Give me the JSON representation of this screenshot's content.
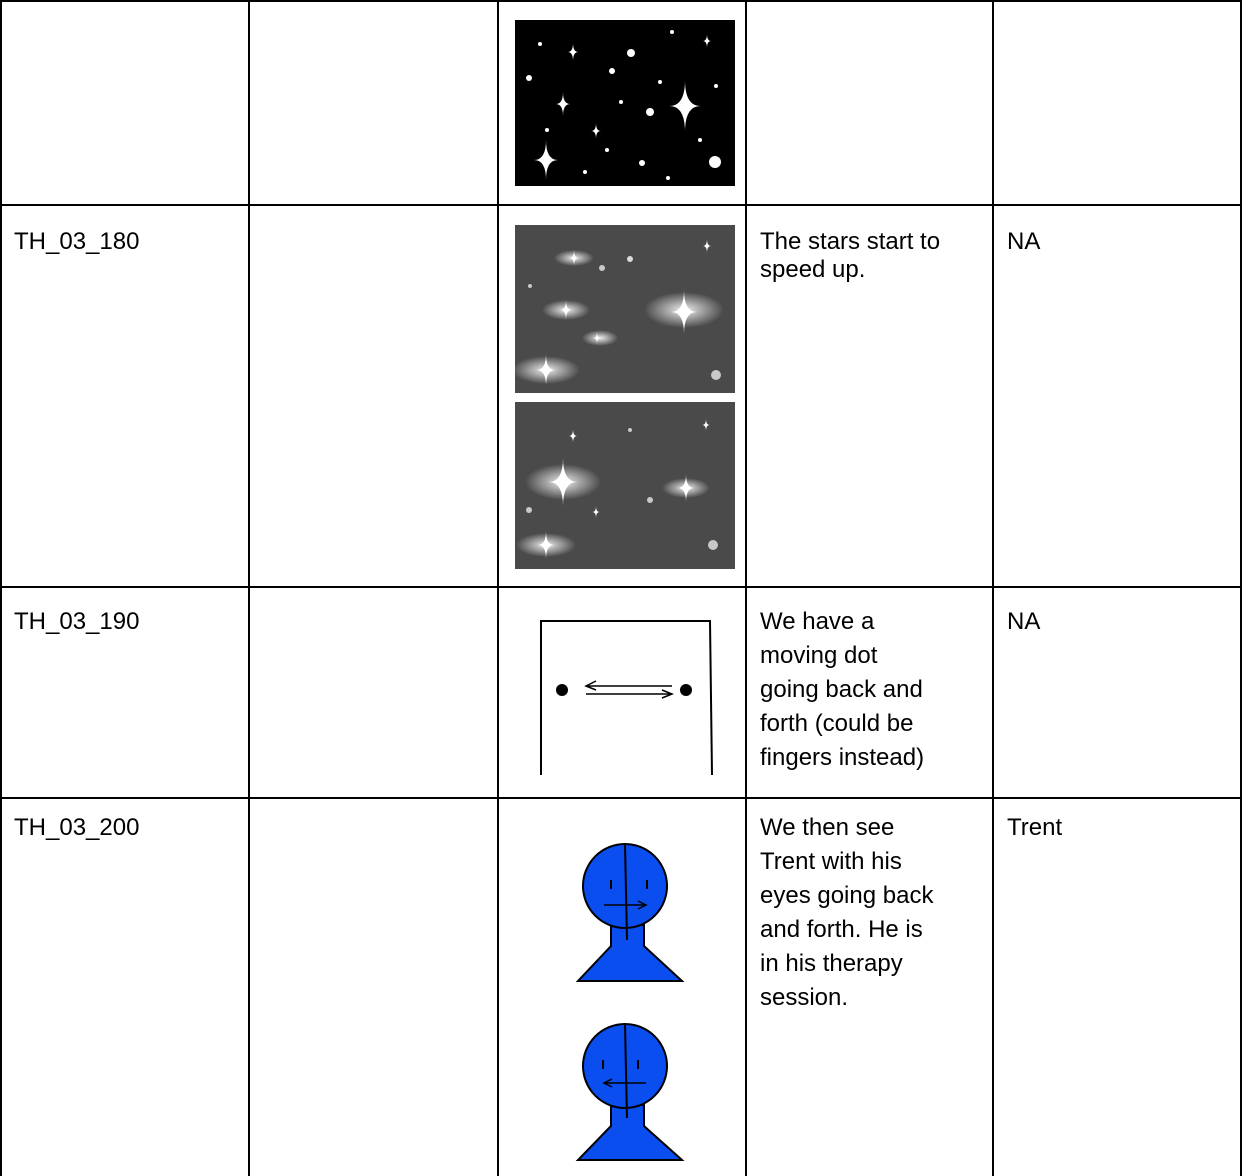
{
  "table": {
    "rows": [
      {
        "shot": "TH_03_180",
        "action": "The stars start to\nspeed up.",
        "character": "NA"
      },
      {
        "shot": "TH_03_190",
        "action": "We have a\nmoving dot\ngoing back and\nforth (could be\nfingers instead)",
        "character": "NA"
      },
      {
        "shot": "TH_03_200",
        "action": "We then see\nTrent with his\neyes going back\nand forth. He is\nin his therapy\nsession.",
        "character": "Trent"
      }
    ]
  }
}
